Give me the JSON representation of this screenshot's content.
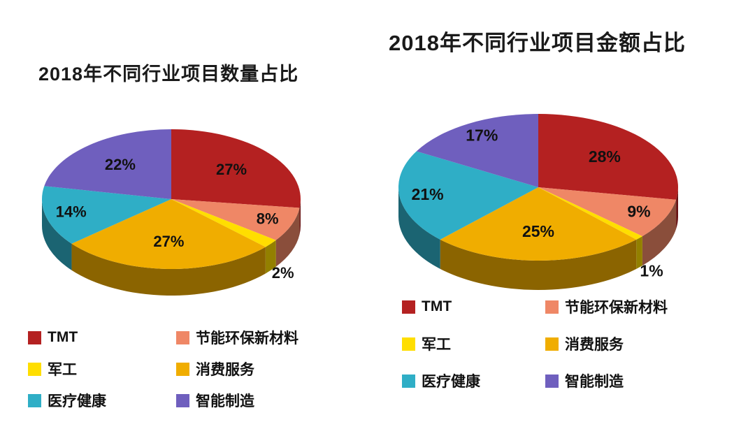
{
  "chart_data": [
    {
      "type": "pie",
      "style": "3d-pie",
      "title": "2018年不同行业项目数量占比",
      "categories": [
        "TMT",
        "节能环保新材料",
        "军工",
        "消费服务",
        "医疗健康",
        "智能制造"
      ],
      "values": [
        27,
        8,
        2,
        27,
        14,
        22
      ],
      "labels": [
        "27%",
        "8%",
        "2%",
        "27%",
        "14%",
        "22%"
      ],
      "colors": [
        "#B42121",
        "#EF8766",
        "#FFDE00",
        "#F0AD00",
        "#2FAEC6",
        "#6F5FBE"
      ],
      "legend_position": "bottom",
      "unit": "percent"
    },
    {
      "type": "pie",
      "style": "3d-pie",
      "title": "2018年不同行业项目金额占比",
      "categories": [
        "TMT",
        "节能环保新材料",
        "军工",
        "消费服务",
        "医疗健康",
        "智能制造"
      ],
      "values": [
        28,
        9,
        1,
        25,
        21,
        17
      ],
      "labels": [
        "28%",
        "9%",
        "1%",
        "25%",
        "21%",
        "17%"
      ],
      "colors": [
        "#B42121",
        "#EF8766",
        "#FFDE00",
        "#F0AD00",
        "#2FAEC6",
        "#6F5FBE"
      ],
      "legend_position": "bottom",
      "unit": "percent"
    }
  ]
}
